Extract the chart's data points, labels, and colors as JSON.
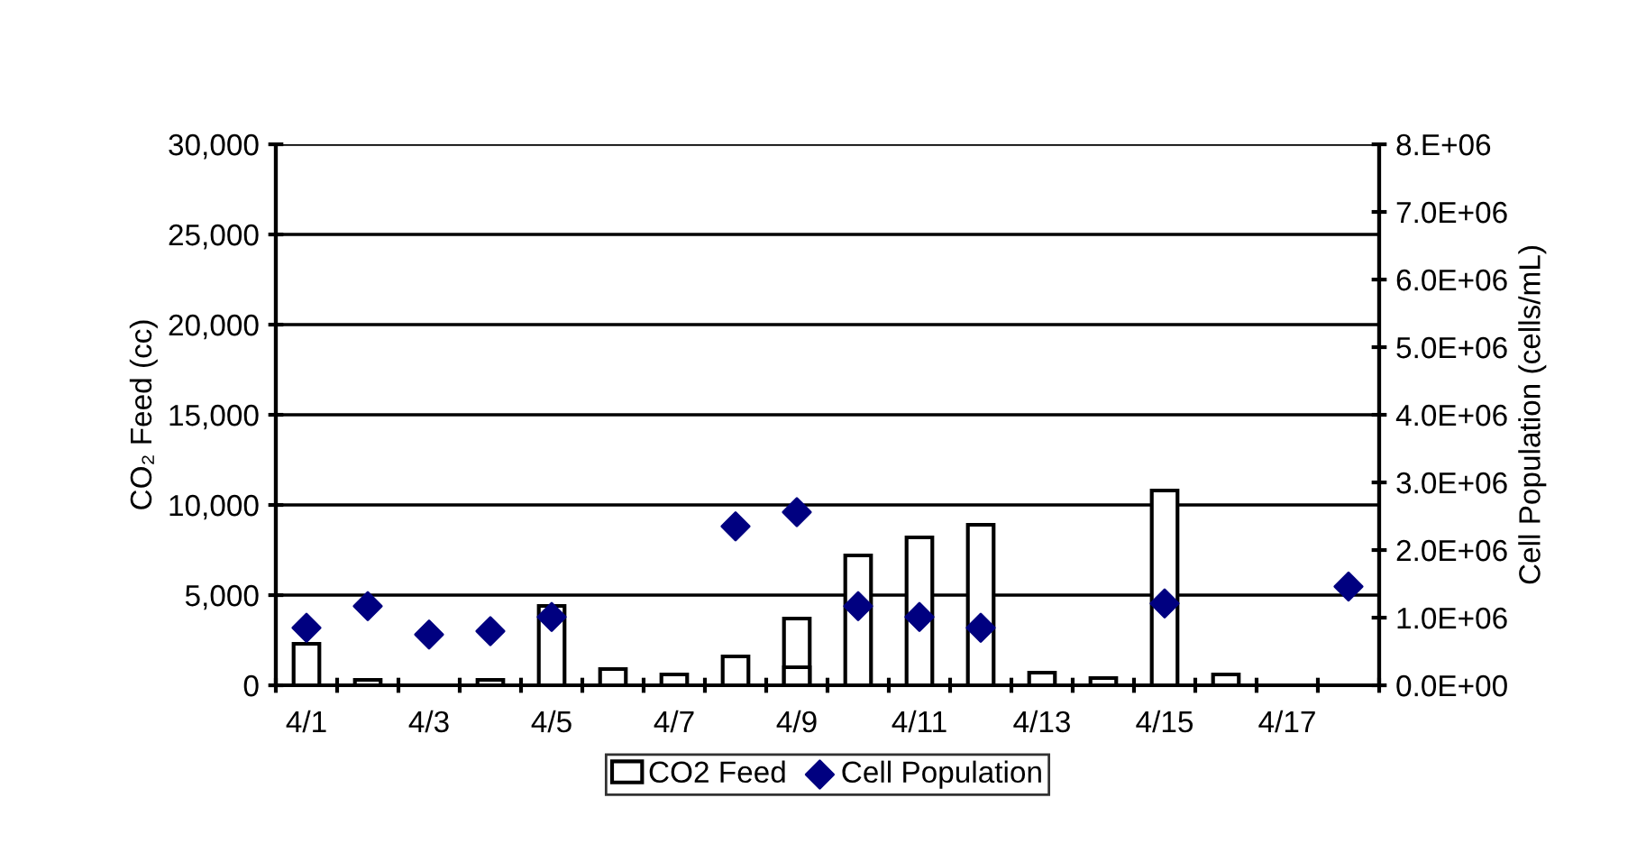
{
  "chart_data": {
    "type": "bar",
    "xlabel": null,
    "ylabel": "CO₂ Feed (cc)",
    "y2label": "Cell Population (cells/mL)",
    "categories": [
      "4/1",
      null,
      "4/3",
      null,
      "4/5",
      null,
      "4/7",
      null,
      "4/9",
      null,
      "4/11",
      null,
      "4/13",
      null,
      "4/15",
      null,
      "4/17",
      null
    ],
    "series": [
      {
        "name": "CO2 Feed",
        "color": "#ffffff",
        "values": [
          2300,
          300,
          null,
          300,
          4400,
          900,
          600,
          1600,
          3700,
          7200,
          8200,
          8900,
          700,
          400,
          10800,
          600,
          null,
          null
        ]
      },
      {
        "color": "#ffffff",
        "values": [
          null,
          null,
          null,
          null,
          null,
          null,
          null,
          null,
          1000,
          null,
          null,
          null,
          null,
          null,
          null,
          null,
          null,
          null
        ]
      },
      {
        "name": "Cell Population",
        "type": "scatter",
        "axis": "y2",
        "color": "#000080",
        "marker": "diamond",
        "values": [
          850000,
          1170000,
          750000,
          800000,
          1010000,
          null,
          null,
          2350000,
          2560000,
          1170000,
          1010000,
          850000,
          null,
          null,
          1210000,
          null,
          null,
          1460000
        ]
      }
    ],
    "ylim": [
      0,
      30000
    ],
    "yticks": [
      {
        "value": 0,
        "label": "0"
      },
      {
        "value": 5000,
        "label": "5,000"
      },
      {
        "value": 10000,
        "label": "10,000"
      },
      {
        "value": 15000,
        "label": "15,000"
      },
      {
        "value": 20000,
        "label": "20,000"
      },
      {
        "value": 25000,
        "label": "25,000"
      },
      {
        "value": 30000,
        "label": "30,000"
      }
    ],
    "y2lim": [
      0,
      8000000
    ],
    "y2ticks": [
      {
        "value": 0,
        "label": "0.0E+00"
      },
      {
        "value": 1000000,
        "label": "1.0E+06"
      },
      {
        "value": 2000000,
        "label": "2.0E+06"
      },
      {
        "value": 3000000,
        "label": "3.0E+06"
      },
      {
        "value": 4000000,
        "label": "4.0E+06"
      },
      {
        "value": 5000000,
        "label": "5.0E+06"
      },
      {
        "value": 6000000,
        "label": "6.0E+06"
      },
      {
        "value": 7000000,
        "label": "7.0E+06"
      },
      {
        "value": 8000000,
        "label": "8.E+06"
      }
    ],
    "grid": "y",
    "legend": "bottom"
  }
}
